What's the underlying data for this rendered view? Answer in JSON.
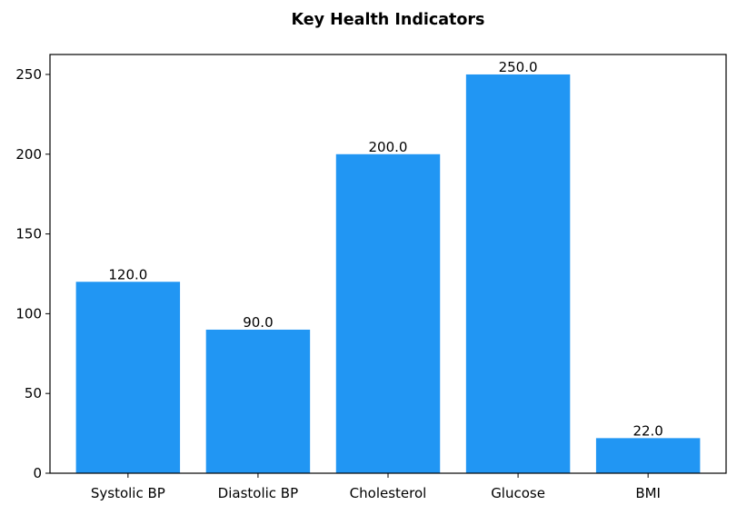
{
  "chart_data": {
    "type": "bar",
    "title": "Key Health Indicators",
    "xlabel": "",
    "ylabel": "",
    "categories": [
      "Systolic BP",
      "Diastolic BP",
      "Cholesterol",
      "Glucose",
      "BMI"
    ],
    "values": [
      120,
      90,
      200,
      250,
      22
    ],
    "value_labels": [
      "120.0",
      "90.0",
      "200.0",
      "250.0",
      "22.0"
    ],
    "ylim": [
      0,
      262.5
    ],
    "yticks": [
      0,
      50,
      100,
      150,
      200,
      250
    ],
    "grid": false,
    "legend": "none",
    "bar_color": "#2196F3"
  }
}
